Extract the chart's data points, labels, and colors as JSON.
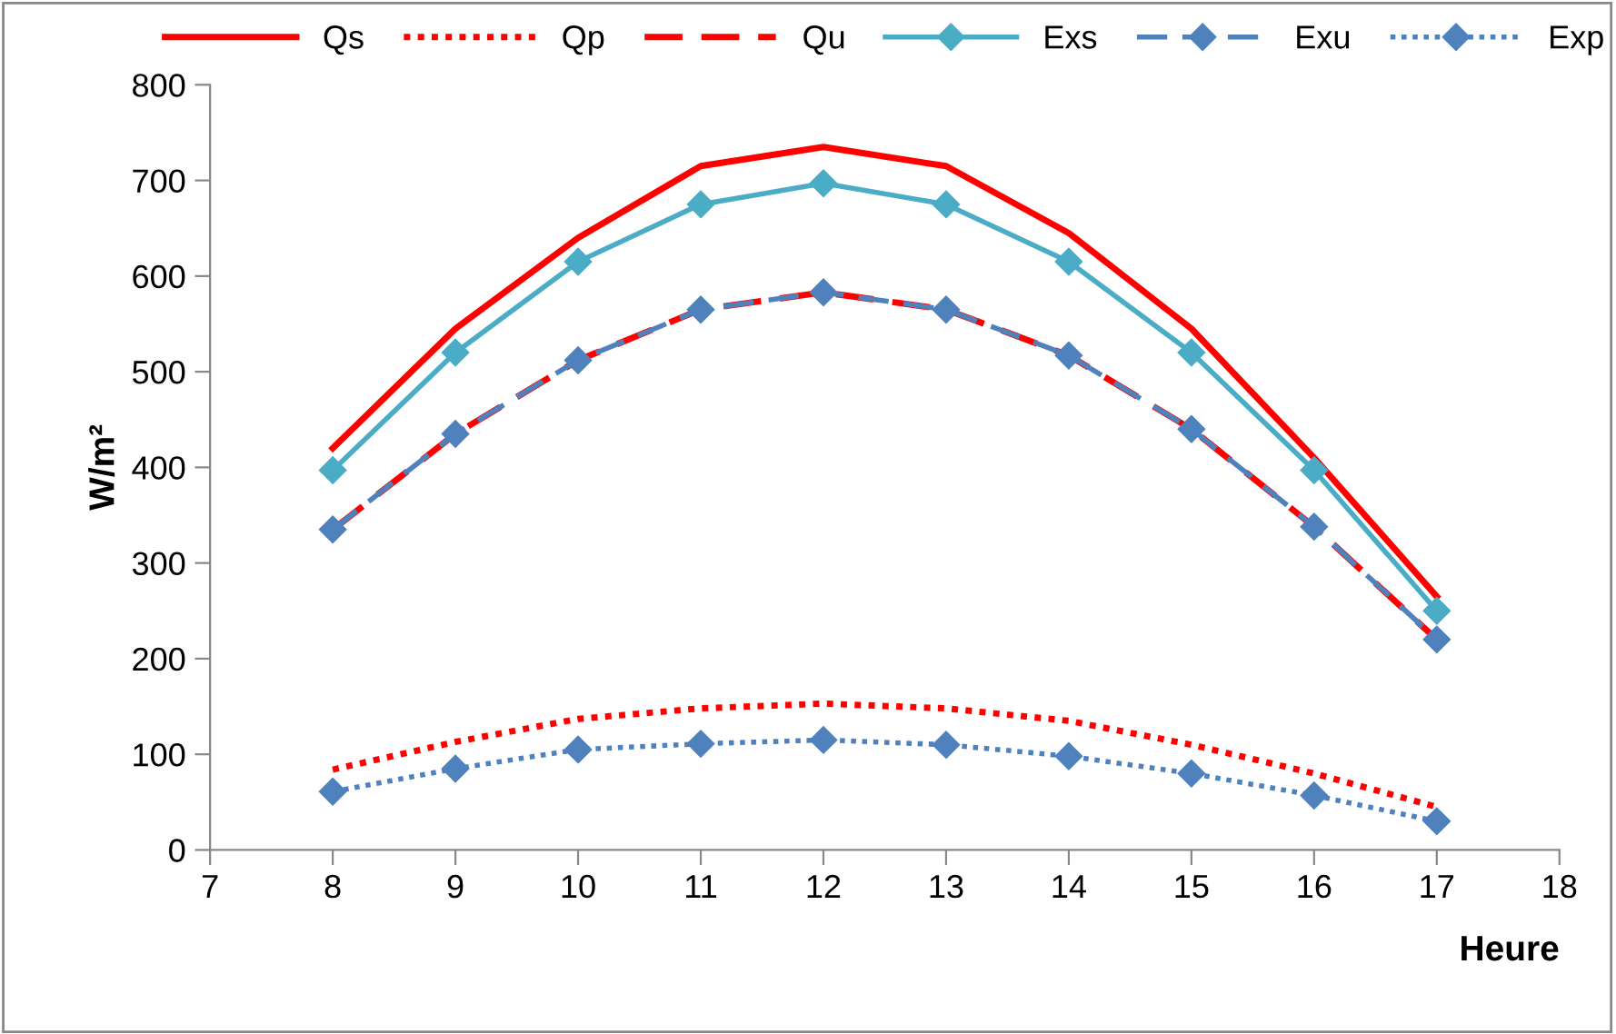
{
  "chart_data": {
    "type": "line",
    "xlabel": "Heure",
    "ylabel": "W/m²",
    "x": [
      8,
      9,
      10,
      11,
      12,
      13,
      14,
      15,
      16,
      17
    ],
    "xlim": [
      7,
      18
    ],
    "xticks": [
      7,
      8,
      9,
      10,
      11,
      12,
      13,
      14,
      15,
      16,
      17,
      18
    ],
    "ylim": [
      0,
      800
    ],
    "yticks": [
      0,
      100,
      200,
      300,
      400,
      500,
      600,
      700,
      800
    ],
    "grid": false,
    "legend": "top",
    "series": [
      {
        "name": "Qs",
        "color": "#ff0000",
        "line_style": "solid",
        "marker": "none",
        "values": [
          420,
          545,
          640,
          715,
          735,
          715,
          645,
          545,
          410,
          265
        ]
      },
      {
        "name": "Qp",
        "color": "#ff0000",
        "line_style": "dotted",
        "marker": "none",
        "values": [
          84,
          113,
          137,
          148,
          153,
          148,
          135,
          110,
          80,
          45
        ]
      },
      {
        "name": "Qu",
        "color": "#ff0000",
        "line_style": "dashed",
        "marker": "none",
        "values": [
          335,
          435,
          512,
          565,
          583,
          565,
          517,
          440,
          338,
          220
        ]
      },
      {
        "name": "Exs",
        "color": "#4bacc6",
        "line_style": "solid",
        "marker": "diamond",
        "values": [
          397,
          520,
          615,
          675,
          697,
          675,
          615,
          520,
          397,
          250
        ]
      },
      {
        "name": "Exu",
        "color": "#4f81bd",
        "line_style": "dashed",
        "marker": "diamond",
        "values": [
          335,
          435,
          512,
          565,
          583,
          565,
          517,
          440,
          338,
          220
        ]
      },
      {
        "name": "Exp",
        "color": "#4f81bd",
        "line_style": "dotted",
        "marker": "diamond",
        "values": [
          61,
          85,
          105,
          111,
          115,
          110,
          98,
          80,
          57,
          30
        ]
      }
    ]
  }
}
